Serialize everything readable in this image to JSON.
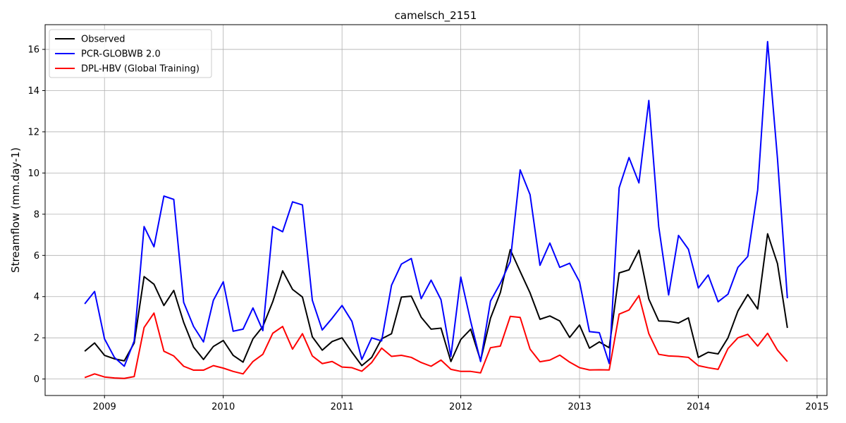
{
  "chart_data": {
    "type": "line",
    "title": "camelsch_2151",
    "xlabel": "",
    "ylabel": "Streamflow (mm.day-1)",
    "x_ticks": [
      "2009",
      "2010",
      "2011",
      "2012",
      "2013",
      "2014",
      "2015"
    ],
    "y_ticks": [
      "0",
      "2",
      "4",
      "6",
      "8",
      "10",
      "12",
      "14",
      "16"
    ],
    "xlim": [
      "2008-07",
      "2015-02"
    ],
    "ylim": [
      -0.8,
      17.2
    ],
    "grid": true,
    "legend_position": "upper-left",
    "x": [
      "2008-11",
      "2008-12",
      "2009-01",
      "2009-02",
      "2009-03",
      "2009-04",
      "2009-05",
      "2009-06",
      "2009-07",
      "2009-08",
      "2009-09",
      "2009-10",
      "2009-11",
      "2009-12",
      "2010-01",
      "2010-02",
      "2010-03",
      "2010-04",
      "2010-05",
      "2010-06",
      "2010-07",
      "2010-08",
      "2010-09",
      "2010-10",
      "2010-11",
      "2010-12",
      "2011-01",
      "2011-02",
      "2011-03",
      "2011-04",
      "2011-05",
      "2011-06",
      "2011-07",
      "2011-08",
      "2011-09",
      "2011-10",
      "2011-11",
      "2011-12",
      "2012-01",
      "2012-02",
      "2012-03",
      "2012-04",
      "2012-05",
      "2012-06",
      "2012-07",
      "2012-08",
      "2012-09",
      "2012-10",
      "2012-11",
      "2012-12",
      "2013-01",
      "2013-02",
      "2013-03",
      "2013-04",
      "2013-05",
      "2013-06",
      "2013-07",
      "2013-08",
      "2013-09",
      "2013-10",
      "2013-11",
      "2013-12",
      "2014-01",
      "2014-02",
      "2014-03",
      "2014-04",
      "2014-05",
      "2014-06",
      "2014-07",
      "2014-08",
      "2014-09",
      "2014-10"
    ],
    "series": [
      {
        "name": "Observed",
        "color": "#000000",
        "values": [
          1.35,
          1.75,
          1.15,
          0.98,
          0.88,
          1.75,
          4.97,
          4.6,
          3.57,
          4.3,
          2.75,
          1.55,
          0.95,
          1.58,
          1.87,
          1.15,
          0.82,
          1.95,
          2.55,
          3.75,
          5.25,
          4.35,
          3.98,
          2.05,
          1.4,
          1.82,
          2.0,
          1.3,
          0.65,
          1.05,
          1.95,
          2.2,
          3.98,
          4.02,
          3.0,
          2.42,
          2.47,
          0.85,
          1.92,
          2.42,
          0.9,
          2.95,
          4.2,
          6.28,
          5.22,
          4.18,
          2.9,
          3.06,
          2.82,
          2.02,
          2.62,
          1.5,
          1.8,
          1.52,
          5.15,
          5.3,
          6.25,
          3.88,
          2.82,
          2.8,
          2.72,
          2.97,
          1.05,
          1.3,
          1.22,
          2.0,
          3.3,
          4.1,
          3.4,
          7.05,
          5.6,
          2.48
        ]
      },
      {
        "name": "PCR-GLOBWB 2.0",
        "color": "#0000ff",
        "values": [
          3.65,
          4.25,
          1.95,
          1.05,
          0.62,
          1.85,
          7.4,
          6.42,
          8.88,
          8.72,
          3.72,
          2.55,
          1.8,
          3.82,
          4.72,
          2.32,
          2.42,
          3.45,
          2.35,
          7.4,
          7.15,
          8.6,
          8.45,
          3.82,
          2.38,
          2.95,
          3.57,
          2.8,
          0.95,
          2.0,
          1.85,
          4.55,
          5.58,
          5.85,
          3.9,
          4.8,
          3.85,
          1.1,
          4.95,
          2.8,
          0.85,
          3.78,
          4.65,
          5.7,
          10.15,
          8.95,
          5.52,
          6.6,
          5.42,
          5.62,
          4.72,
          2.3,
          2.25,
          0.75,
          9.28,
          10.75,
          9.52,
          13.52,
          7.4,
          4.08,
          6.97,
          6.3,
          4.42,
          5.05,
          3.75,
          4.12,
          5.42,
          5.95,
          9.18,
          16.38,
          10.7,
          3.92
        ]
      },
      {
        "name": "DPL-HBV (Global Training)",
        "color": "#ff0000",
        "values": [
          0.07,
          0.25,
          0.1,
          0.05,
          0.03,
          0.12,
          2.5,
          3.2,
          1.35,
          1.12,
          0.62,
          0.43,
          0.43,
          0.65,
          0.53,
          0.37,
          0.25,
          0.85,
          1.2,
          2.22,
          2.55,
          1.45,
          2.2,
          1.12,
          0.75,
          0.85,
          0.58,
          0.55,
          0.38,
          0.8,
          1.5,
          1.1,
          1.15,
          1.05,
          0.8,
          0.62,
          0.92,
          0.47,
          0.37,
          0.37,
          0.3,
          1.52,
          1.6,
          3.04,
          2.99,
          1.45,
          0.84,
          0.92,
          1.16,
          0.82,
          0.55,
          0.44,
          0.45,
          0.44,
          3.15,
          3.35,
          4.05,
          2.2,
          1.2,
          1.12,
          1.1,
          1.05,
          0.65,
          0.55,
          0.47,
          1.48,
          2.0,
          2.17,
          1.6,
          2.22,
          1.4,
          0.85
        ]
      }
    ]
  }
}
